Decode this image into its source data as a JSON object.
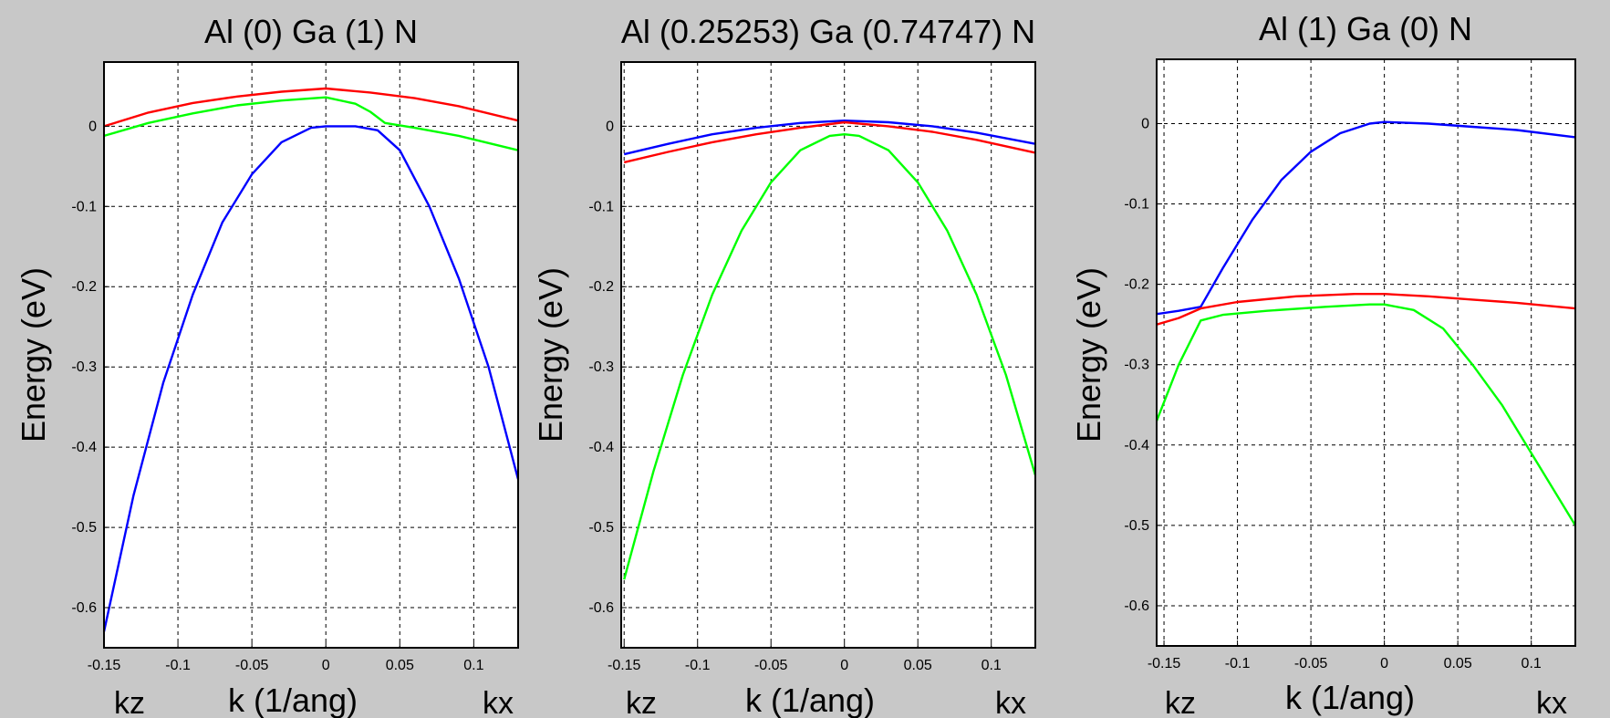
{
  "figure": {
    "background": "#c8c8c8"
  },
  "chart_data": [
    {
      "type": "line",
      "title": "Al (0) Ga (1) N",
      "xlabel": "k (1/ang)",
      "ylabel": "Energy (eV)",
      "x_left_label": "kz",
      "x_right_label": "kx",
      "xlim": [
        -0.15,
        0.13
      ],
      "ylim": [
        -0.65,
        0.08
      ],
      "xticks": [
        -0.15,
        -0.1,
        -0.05,
        0,
        0.05,
        0.1
      ],
      "xtick_labels": [
        "-0.15",
        "-0.1",
        "-0.05",
        "0",
        "0.05",
        "0.1"
      ],
      "yticks": [
        0,
        -0.1,
        -0.2,
        -0.3,
        -0.4,
        -0.5,
        -0.6
      ],
      "ytick_labels": [
        "0",
        "-0.1",
        "-0.2",
        "-0.3",
        "-0.4",
        "-0.5",
        "-0.6"
      ],
      "grid": true,
      "series": [
        {
          "color": "#ff0000",
          "points": [
            [
              -0.15,
              0.0
            ],
            [
              -0.12,
              0.017
            ],
            [
              -0.09,
              0.029
            ],
            [
              -0.06,
              0.037
            ],
            [
              -0.03,
              0.043
            ],
            [
              0.0,
              0.047
            ],
            [
              0.03,
              0.042
            ],
            [
              0.06,
              0.035
            ],
            [
              0.09,
              0.025
            ],
            [
              0.13,
              0.007
            ]
          ]
        },
        {
          "color": "#00ff00",
          "points": [
            [
              -0.15,
              -0.012
            ],
            [
              -0.12,
              0.004
            ],
            [
              -0.09,
              0.016
            ],
            [
              -0.06,
              0.026
            ],
            [
              -0.03,
              0.032
            ],
            [
              0.0,
              0.036
            ],
            [
              0.02,
              0.028
            ],
            [
              0.03,
              0.018
            ],
            [
              0.04,
              0.004
            ],
            [
              0.06,
              -0.002
            ],
            [
              0.09,
              -0.012
            ],
            [
              0.13,
              -0.03
            ]
          ]
        },
        {
          "color": "#0000ff",
          "points": [
            [
              -0.15,
              -0.63
            ],
            [
              -0.13,
              -0.46
            ],
            [
              -0.11,
              -0.32
            ],
            [
              -0.09,
              -0.21
            ],
            [
              -0.07,
              -0.12
            ],
            [
              -0.05,
              -0.06
            ],
            [
              -0.03,
              -0.02
            ],
            [
              -0.01,
              -0.002
            ],
            [
              0.0,
              0.0
            ],
            [
              0.02,
              0.0
            ],
            [
              0.035,
              -0.005
            ],
            [
              0.05,
              -0.03
            ],
            [
              0.07,
              -0.1
            ],
            [
              0.09,
              -0.19
            ],
            [
              0.11,
              -0.3
            ],
            [
              0.13,
              -0.44
            ]
          ]
        }
      ]
    },
    {
      "type": "line",
      "title": "Al (0.25253) Ga (0.74747) N",
      "xlabel": "k (1/ang)",
      "ylabel": "Energy (eV)",
      "x_left_label": "kz",
      "x_right_label": "kx",
      "xlim": [
        -0.152,
        0.13
      ],
      "ylim": [
        -0.65,
        0.08
      ],
      "xticks": [
        -0.15,
        -0.1,
        -0.05,
        0,
        0.05,
        0.1
      ],
      "xtick_labels": [
        "-0.15",
        "-0.1",
        "-0.05",
        "0",
        "0.05",
        "0.1"
      ],
      "yticks": [
        0,
        -0.1,
        -0.2,
        -0.3,
        -0.4,
        -0.5,
        -0.6
      ],
      "ytick_labels": [
        "0",
        "-0.1",
        "-0.2",
        "-0.3",
        "-0.4",
        "-0.5",
        "-0.6"
      ],
      "grid": true,
      "series": [
        {
          "color": "#0000ff",
          "points": [
            [
              -0.15,
              -0.035
            ],
            [
              -0.12,
              -0.022
            ],
            [
              -0.09,
              -0.01
            ],
            [
              -0.06,
              -0.002
            ],
            [
              -0.03,
              0.004
            ],
            [
              0.0,
              0.007
            ],
            [
              0.03,
              0.005
            ],
            [
              0.06,
              0.0
            ],
            [
              0.09,
              -0.008
            ],
            [
              0.13,
              -0.022
            ]
          ]
        },
        {
          "color": "#ff0000",
          "points": [
            [
              -0.15,
              -0.045
            ],
            [
              -0.12,
              -0.032
            ],
            [
              -0.09,
              -0.02
            ],
            [
              -0.06,
              -0.01
            ],
            [
              -0.03,
              -0.002
            ],
            [
              0.0,
              0.005
            ],
            [
              0.03,
              0.0
            ],
            [
              0.06,
              -0.007
            ],
            [
              0.09,
              -0.017
            ],
            [
              0.13,
              -0.033
            ]
          ]
        },
        {
          "color": "#00ff00",
          "points": [
            [
              -0.15,
              -0.565
            ],
            [
              -0.13,
              -0.43
            ],
            [
              -0.11,
              -0.31
            ],
            [
              -0.09,
              -0.21
            ],
            [
              -0.07,
              -0.13
            ],
            [
              -0.05,
              -0.07
            ],
            [
              -0.03,
              -0.03
            ],
            [
              -0.01,
              -0.012
            ],
            [
              0.0,
              -0.01
            ],
            [
              0.01,
              -0.012
            ],
            [
              0.03,
              -0.03
            ],
            [
              0.05,
              -0.07
            ],
            [
              0.07,
              -0.13
            ],
            [
              0.09,
              -0.21
            ],
            [
              0.11,
              -0.31
            ],
            [
              0.13,
              -0.435
            ]
          ]
        }
      ]
    },
    {
      "type": "line",
      "title": "Al (1) Ga (0) N",
      "xlabel": "k (1/ang)",
      "ylabel": "Energy (eV)",
      "x_left_label": "kz",
      "x_right_label": "kx",
      "xlim": [
        -0.155,
        0.13
      ],
      "ylim": [
        -0.65,
        0.08
      ],
      "xticks": [
        -0.15,
        -0.1,
        -0.05,
        0,
        0.05,
        0.1
      ],
      "xtick_labels": [
        "-0.15",
        "-0.1",
        "-0.05",
        "0",
        "0.05",
        "0.1"
      ],
      "yticks": [
        0,
        -0.1,
        -0.2,
        -0.3,
        -0.4,
        -0.5,
        -0.6
      ],
      "ytick_labels": [
        "0",
        "-0.1",
        "-0.2",
        "-0.3",
        "-0.4",
        "-0.5",
        "-0.6"
      ],
      "grid": true,
      "series": [
        {
          "color": "#0000ff",
          "points": [
            [
              -0.155,
              -0.237
            ],
            [
              -0.14,
              -0.233
            ],
            [
              -0.125,
              -0.228
            ],
            [
              -0.11,
              -0.18
            ],
            [
              -0.09,
              -0.12
            ],
            [
              -0.07,
              -0.07
            ],
            [
              -0.05,
              -0.035
            ],
            [
              -0.03,
              -0.012
            ],
            [
              -0.01,
              0.0
            ],
            [
              0.0,
              0.002
            ],
            [
              0.03,
              0.0
            ],
            [
              0.06,
              -0.004
            ],
            [
              0.09,
              -0.008
            ],
            [
              0.13,
              -0.017
            ]
          ]
        },
        {
          "color": "#ff0000",
          "points": [
            [
              -0.155,
              -0.25
            ],
            [
              -0.14,
              -0.242
            ],
            [
              -0.125,
              -0.23
            ],
            [
              -0.1,
              -0.222
            ],
            [
              -0.06,
              -0.215
            ],
            [
              -0.02,
              -0.212
            ],
            [
              0.0,
              -0.212
            ],
            [
              0.03,
              -0.215
            ],
            [
              0.06,
              -0.219
            ],
            [
              0.09,
              -0.223
            ],
            [
              0.13,
              -0.23
            ]
          ]
        },
        {
          "color": "#00ff00",
          "points": [
            [
              -0.155,
              -0.37
            ],
            [
              -0.14,
              -0.3
            ],
            [
              -0.125,
              -0.245
            ],
            [
              -0.11,
              -0.238
            ],
            [
              -0.08,
              -0.233
            ],
            [
              -0.04,
              -0.228
            ],
            [
              -0.01,
              -0.225
            ],
            [
              0.0,
              -0.225
            ],
            [
              0.02,
              -0.232
            ],
            [
              0.04,
              -0.255
            ],
            [
              0.06,
              -0.3
            ],
            [
              0.08,
              -0.35
            ],
            [
              0.1,
              -0.41
            ],
            [
              0.13,
              -0.5
            ]
          ]
        }
      ]
    }
  ]
}
